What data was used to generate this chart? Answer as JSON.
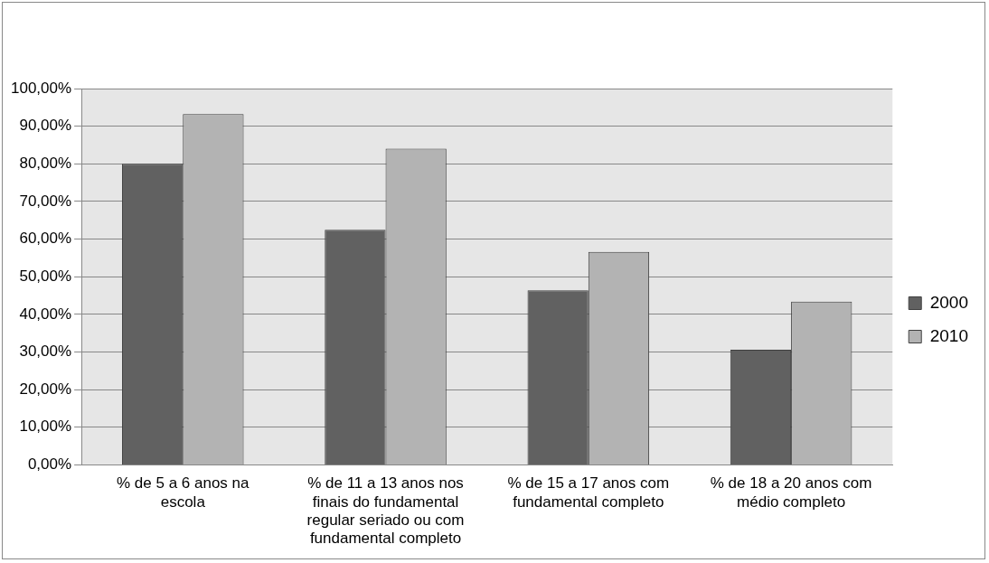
{
  "chart_data": {
    "type": "bar",
    "categories": [
      "% de 5 a 6 anos na escola",
      "% de 11 a 13 anos nos finais do fundamental regular seriado ou com fundamental completo",
      "% de 15 a 17 anos com fundamental completo",
      "% de 18 a 20 anos com médio completo"
    ],
    "series": [
      {
        "name": "2000",
        "color": "#616161",
        "values": [
          80.0,
          62.5,
          46.4,
          30.6
        ]
      },
      {
        "name": "2010",
        "color": "#b3b3b3",
        "values": [
          93.2,
          84,
          56.6,
          43.4
        ]
      }
    ],
    "ylim": [
      0,
      100
    ],
    "yticks": [
      {
        "value": 0,
        "label": "0,00%"
      },
      {
        "value": 10,
        "label": "10,00%"
      },
      {
        "value": 20,
        "label": "20,00%"
      },
      {
        "value": 30,
        "label": "30,00%"
      },
      {
        "value": 40,
        "label": "40,00%"
      },
      {
        "value": 50,
        "label": "50,00%"
      },
      {
        "value": 60,
        "label": "60,00%"
      },
      {
        "value": 70,
        "label": "70,00%"
      },
      {
        "value": 80,
        "label": "80,00%"
      },
      {
        "value": 90,
        "label": "90,00%"
      },
      {
        "value": 100,
        "label": "100,00%"
      }
    ],
    "grid": "y",
    "legend": "right"
  }
}
